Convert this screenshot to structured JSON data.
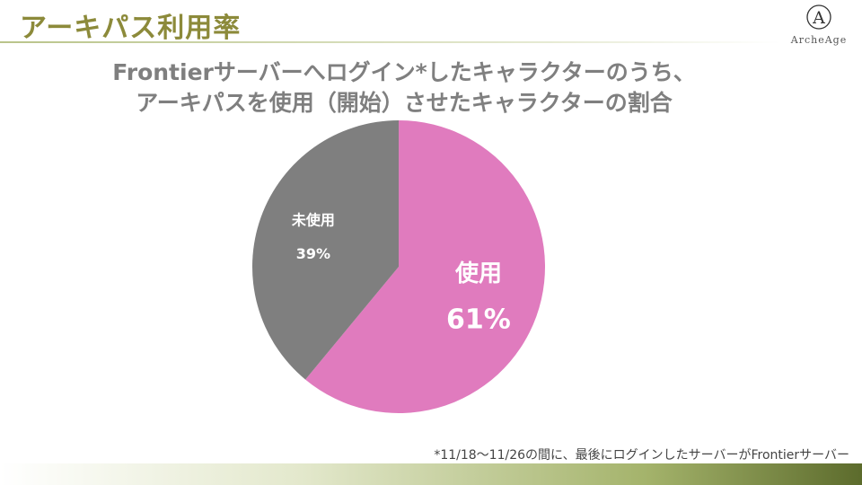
{
  "header": {
    "title": "アーキパス利用率",
    "logo_text": "ArcheAge",
    "logo_letter": "A"
  },
  "chart_data": {
    "type": "pie",
    "title_line1": "Frontierサーバーへログイン*したキャラクターのうち、",
    "title_line2": "アーキパスを使用（開始）させたキャラクターの割合",
    "slices": [
      {
        "label": "使用",
        "value": 61,
        "value_label": "61%",
        "color": "#e07bbe"
      },
      {
        "label": "未使用",
        "value": 39,
        "value_label": "39%",
        "color": "#7f7f7f"
      }
    ],
    "start_angle_deg": 0,
    "direction": "clockwise"
  },
  "footnote": "*11/18～11/26の間に、最後にログインしたサーバーがFrontierサーバー"
}
